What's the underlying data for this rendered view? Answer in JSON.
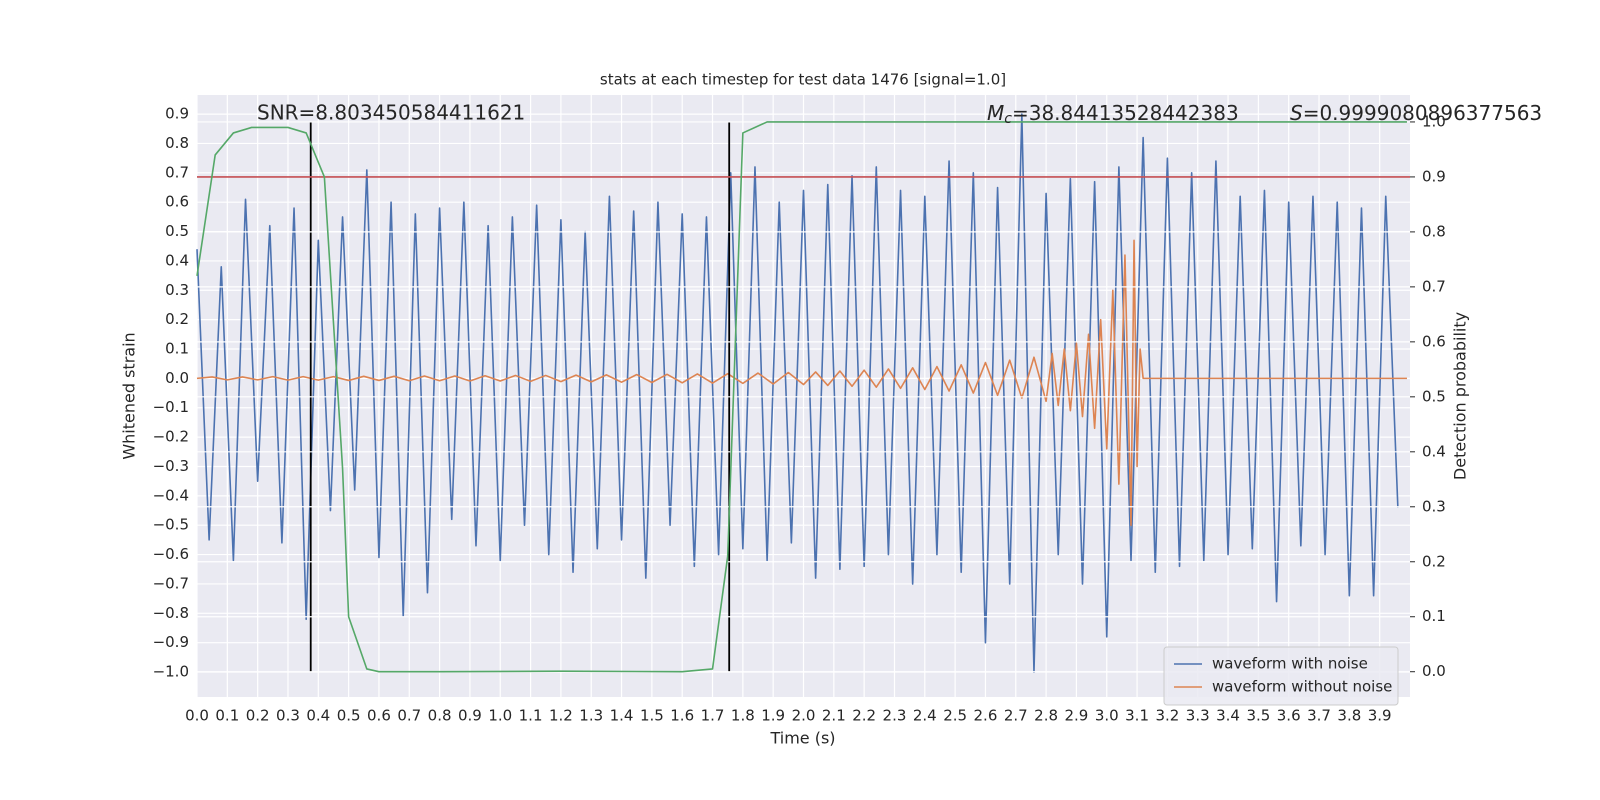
{
  "chart_data": {
    "type": "line",
    "title": "stats at each timestep for test data 1476 [signal=1.0]",
    "xlabel": "Time (s)",
    "ylabel": "Whitened strain",
    "y2label": "Detection probability",
    "grid": true,
    "legend": "lower right",
    "xlim": [
      0,
      4.0
    ],
    "ylim": [
      -1.085,
      0.965
    ],
    "y2lim": [
      -0.046,
      1.049
    ],
    "xticks": [
      {
        "value": 0,
        "label": "0.0"
      },
      {
        "value": 0.1,
        "label": "0.1"
      },
      {
        "value": 0.2,
        "label": "0.2"
      },
      {
        "value": 0.3,
        "label": "0.3"
      },
      {
        "value": 0.4,
        "label": "0.4"
      },
      {
        "value": 0.5,
        "label": "0.5"
      },
      {
        "value": 0.6,
        "label": "0.6"
      },
      {
        "value": 0.7,
        "label": "0.7"
      },
      {
        "value": 0.8,
        "label": "0.8"
      },
      {
        "value": 0.9,
        "label": "0.9"
      },
      {
        "value": 1,
        "label": "1.0"
      },
      {
        "value": 1.1,
        "label": "1.1"
      },
      {
        "value": 1.2,
        "label": "1.2"
      },
      {
        "value": 1.3,
        "label": "1.3"
      },
      {
        "value": 1.4,
        "label": "1.4"
      },
      {
        "value": 1.5,
        "label": "1.5"
      },
      {
        "value": 1.6,
        "label": "1.6"
      },
      {
        "value": 1.7,
        "label": "1.7"
      },
      {
        "value": 1.8,
        "label": "1.8"
      },
      {
        "value": 1.9,
        "label": "1.9"
      },
      {
        "value": 2,
        "label": "2.0"
      },
      {
        "value": 2.1,
        "label": "2.1"
      },
      {
        "value": 2.2,
        "label": "2.2"
      },
      {
        "value": 2.3,
        "label": "2.3"
      },
      {
        "value": 2.4,
        "label": "2.4"
      },
      {
        "value": 2.5,
        "label": "2.5"
      },
      {
        "value": 2.6,
        "label": "2.6"
      },
      {
        "value": 2.7,
        "label": "2.7"
      },
      {
        "value": 2.8,
        "label": "2.8"
      },
      {
        "value": 2.9,
        "label": "2.9"
      },
      {
        "value": 3,
        "label": "3.0"
      },
      {
        "value": 3.1,
        "label": "3.1"
      },
      {
        "value": 3.2,
        "label": "3.2"
      },
      {
        "value": 3.3,
        "label": "3.3"
      },
      {
        "value": 3.4,
        "label": "3.4"
      },
      {
        "value": 3.5,
        "label": "3.5"
      },
      {
        "value": 3.6,
        "label": "3.6"
      },
      {
        "value": 3.7,
        "label": "3.7"
      },
      {
        "value": 3.8,
        "label": "3.8"
      },
      {
        "value": 3.9,
        "label": "3.9"
      }
    ],
    "yticks": [
      {
        "value": -1,
        "label": "−1.0"
      },
      {
        "value": -0.9,
        "label": "−0.9"
      },
      {
        "value": -0.8,
        "label": "−0.8"
      },
      {
        "value": -0.7,
        "label": "−0.7"
      },
      {
        "value": -0.6,
        "label": "−0.6"
      },
      {
        "value": -0.5,
        "label": "−0.5"
      },
      {
        "value": -0.4,
        "label": "−0.4"
      },
      {
        "value": -0.3,
        "label": "−0.3"
      },
      {
        "value": -0.2,
        "label": "−0.2"
      },
      {
        "value": -0.1,
        "label": "−0.1"
      },
      {
        "value": 0,
        "label": "0.0"
      },
      {
        "value": 0.1,
        "label": "0.1"
      },
      {
        "value": 0.2,
        "label": "0.2"
      },
      {
        "value": 0.3,
        "label": "0.3"
      },
      {
        "value": 0.4,
        "label": "0.4"
      },
      {
        "value": 0.5,
        "label": "0.5"
      },
      {
        "value": 0.6,
        "label": "0.6"
      },
      {
        "value": 0.7,
        "label": "0.7"
      },
      {
        "value": 0.8,
        "label": "0.8"
      },
      {
        "value": 0.9,
        "label": "0.9"
      }
    ],
    "y2ticks": [
      {
        "value": 0,
        "label": "0.0"
      },
      {
        "value": 0.1,
        "label": "0.1"
      },
      {
        "value": 0.2,
        "label": "0.2"
      },
      {
        "value": 0.3,
        "label": "0.3"
      },
      {
        "value": 0.4,
        "label": "0.4"
      },
      {
        "value": 0.5,
        "label": "0.5"
      },
      {
        "value": 0.6,
        "label": "0.6"
      },
      {
        "value": 0.7,
        "label": "0.7"
      },
      {
        "value": 0.8,
        "label": "0.8"
      },
      {
        "value": 0.9,
        "label": "0.9"
      },
      {
        "value": 1,
        "label": "1.0"
      }
    ],
    "threshold": {
      "value": 0.9,
      "color": "#c44e52"
    },
    "vlines": [
      0.375,
      1.755
    ],
    "vline_color": "#000000",
    "annotations": [
      {
        "text": "SNR=8.803450584411621"
      },
      {
        "symbol": "M",
        "subscript": "c",
        "text": "=38.84413528442383"
      },
      {
        "symbol": "S",
        "text": "=0.9999080896377563"
      }
    ],
    "series": [
      {
        "name": "waveform with noise",
        "color": "#4c72b0",
        "legend": true,
        "x": [
          0,
          0.04,
          0.08,
          0.12,
          0.16,
          0.2,
          0.24,
          0.28,
          0.32,
          0.36,
          0.4,
          0.44,
          0.48,
          0.52,
          0.56,
          0.6,
          0.64,
          0.68,
          0.72,
          0.76,
          0.8,
          0.84,
          0.88,
          0.92,
          0.96,
          1,
          1.04,
          1.08,
          1.12,
          1.16,
          1.2,
          1.24,
          1.28,
          1.32,
          1.36,
          1.4,
          1.44,
          1.48,
          1.52,
          1.56,
          1.6,
          1.64,
          1.68,
          1.72,
          1.76,
          1.8,
          1.84,
          1.88,
          1.92,
          1.96,
          2,
          2.04,
          2.08,
          2.12,
          2.16,
          2.2,
          2.24,
          2.28,
          2.32,
          2.36,
          2.4,
          2.44,
          2.48,
          2.52,
          2.56,
          2.6,
          2.64,
          2.68,
          2.72,
          2.76,
          2.8,
          2.84,
          2.88,
          2.92,
          2.96,
          3,
          3.04,
          3.08,
          3.12,
          3.16,
          3.2,
          3.24,
          3.28,
          3.32,
          3.36,
          3.4,
          3.44,
          3.48,
          3.52,
          3.56,
          3.6,
          3.64,
          3.68,
          3.72,
          3.76,
          3.8,
          3.84,
          3.88,
          3.92,
          3.96
        ],
        "values": [
          0.44,
          -0.55,
          0.38,
          -0.62,
          0.61,
          -0.35,
          0.52,
          -0.56,
          0.58,
          -0.82,
          0.47,
          -0.45,
          0.55,
          -0.38,
          0.71,
          -0.61,
          0.6,
          -0.81,
          0.56,
          -0.73,
          0.58,
          -0.48,
          0.6,
          -0.57,
          0.52,
          -0.62,
          0.55,
          -0.5,
          0.59,
          -0.6,
          0.54,
          -0.66,
          0.5,
          -0.58,
          0.62,
          -0.55,
          0.57,
          -0.68,
          0.6,
          -0.5,
          0.56,
          -0.64,
          0.55,
          -0.6,
          0.7,
          -0.58,
          0.72,
          -0.62,
          0.6,
          -0.56,
          0.64,
          -0.68,
          0.66,
          -0.65,
          0.69,
          -0.64,
          0.72,
          -0.6,
          0.64,
          -0.7,
          0.62,
          -0.6,
          0.74,
          -0.66,
          0.7,
          -0.9,
          0.65,
          -0.7,
          0.9,
          -1.0,
          0.63,
          -0.6,
          0.68,
          -0.7,
          0.67,
          -0.88,
          0.72,
          -0.62,
          0.82,
          -0.66,
          0.75,
          -0.64,
          0.7,
          -0.62,
          0.74,
          -0.6,
          0.62,
          -0.58,
          0.64,
          -0.76,
          0.6,
          -0.57,
          0.62,
          -0.6,
          0.6,
          -0.74,
          0.58,
          -0.74,
          0.62,
          -0.44
        ]
      },
      {
        "name": "waveform without noise",
        "color": "#dd8452",
        "legend": true,
        "x": [
          0,
          0.05,
          0.1,
          0.15,
          0.2,
          0.25,
          0.3,
          0.35,
          0.4,
          0.45,
          0.5,
          0.55,
          0.6,
          0.65,
          0.7,
          0.75,
          0.8,
          0.85,
          0.9,
          0.95,
          1,
          1.05,
          1.1,
          1.15,
          1.2,
          1.25,
          1.3,
          1.35,
          1.4,
          1.45,
          1.5,
          1.55,
          1.6,
          1.65,
          1.7,
          1.75,
          1.8,
          1.85,
          1.9,
          1.95,
          2,
          2.04,
          2.08,
          2.12,
          2.16,
          2.2,
          2.24,
          2.28,
          2.32,
          2.36,
          2.4,
          2.44,
          2.48,
          2.52,
          2.56,
          2.6,
          2.64,
          2.68,
          2.72,
          2.76,
          2.8,
          2.82,
          2.84,
          2.86,
          2.88,
          2.9,
          2.92,
          2.94,
          2.96,
          2.98,
          3,
          3.02,
          3.04,
          3.06,
          3.08,
          3.09,
          3.1,
          3.11,
          3.12,
          3.99
        ],
        "values": [
          0,
          0.005,
          -0.005,
          0.005,
          -0.005,
          0.006,
          -0.006,
          0.006,
          -0.006,
          0.006,
          -0.007,
          0.007,
          -0.007,
          0.007,
          -0.008,
          0.008,
          -0.008,
          0.008,
          -0.009,
          0.009,
          -0.009,
          0.01,
          -0.01,
          0.01,
          -0.011,
          0.011,
          -0.012,
          0.012,
          -0.013,
          0.013,
          -0.014,
          0.014,
          -0.015,
          0.015,
          -0.016,
          0.016,
          -0.017,
          0.018,
          -0.019,
          0.02,
          -0.021,
          0.022,
          -0.024,
          0.025,
          -0.027,
          0.028,
          -0.03,
          0.032,
          -0.034,
          0.036,
          -0.038,
          0.04,
          -0.043,
          0.046,
          -0.05,
          0.054,
          -0.058,
          0.062,
          -0.067,
          0.072,
          -0.078,
          0.085,
          -0.092,
          0.1,
          -0.11,
          0.12,
          -0.13,
          0.15,
          -0.17,
          0.2,
          -0.24,
          0.3,
          -0.36,
          0.42,
          -0.5,
          0.47,
          -0.3,
          0.1,
          0,
          0
        ]
      },
      {
        "name": "detection probability",
        "color": "#55a868",
        "axis": "y2",
        "legend": false,
        "x": [
          0,
          0.06,
          0.12,
          0.18,
          0.24,
          0.3,
          0.36,
          0.42,
          0.48,
          0.5,
          0.56,
          0.6,
          0.7,
          0.8,
          1.2,
          1.6,
          1.7,
          1.75,
          1.8,
          1.88,
          2.0,
          3.99
        ],
        "values": [
          0.72,
          0.94,
          0.98,
          0.99,
          0.99,
          0.99,
          0.98,
          0.9,
          0.37,
          0.1,
          0.005,
          0,
          0,
          0,
          0.001,
          0,
          0.005,
          0.21,
          0.98,
          1.0,
          1.0,
          1.0
        ]
      }
    ]
  }
}
